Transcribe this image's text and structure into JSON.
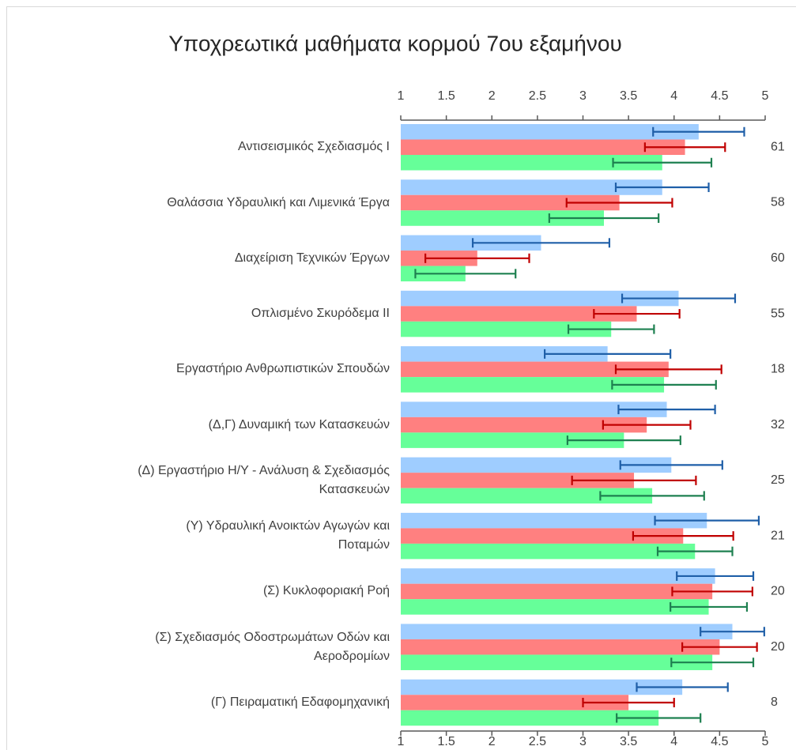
{
  "chart_data": {
    "type": "hbar_error",
    "title": "Υποχρεωτικά μαθήματα κορμού 7ου εξαμήνου",
    "categories": [
      "Αντισεισμικός Σχεδιασμός Ι",
      "Θαλάσσια Υδραυλική και Λιμενικά Έργα",
      "Διαχείριση Τεχνικών Έργων",
      "Οπλισμένο Σκυρόδεμα ΙΙ",
      "Εργαστήριο Ανθρωπιστικών Σπουδών",
      "(Δ,Γ) Δυναμική των Κατασκευών ",
      "(Δ) Εργαστήριο Η/Υ - Ανάλυση & Σχεδιασμός\nΚατασκευών",
      "(Υ) Υδραυλική Ανοικτών Αγωγών και\nΠοταμών",
      "(Σ) Κυκλοφοριακή Ροή",
      "(Σ) Σχεδιασμός Οδοστρωμάτων Οδών και\nΑεροδρομίων",
      "(Γ) Πειραματική Εδαφομηχανική"
    ],
    "series": [
      {
        "color": "#9fcdff",
        "error_color": "#1f5fa8",
        "values": [
          4.27,
          3.87,
          2.54,
          4.05,
          3.27,
          3.92,
          3.97,
          4.36,
          4.45,
          4.64,
          4.09
        ],
        "errors": [
          0.5,
          0.51,
          0.75,
          0.62,
          0.69,
          0.53,
          0.56,
          0.57,
          0.42,
          0.35,
          0.5
        ]
      },
      {
        "color": "#ff8080",
        "error_color": "#c00000",
        "values": [
          4.12,
          3.4,
          1.84,
          3.59,
          3.94,
          3.7,
          3.56,
          4.1,
          4.42,
          4.5,
          3.5
        ],
        "errors": [
          0.44,
          0.58,
          0.57,
          0.47,
          0.58,
          0.48,
          0.68,
          0.55,
          0.44,
          0.41,
          0.5
        ]
      },
      {
        "color": "#66ff99",
        "error_color": "#1e8050",
        "values": [
          3.87,
          3.23,
          1.71,
          3.31,
          3.89,
          3.45,
          3.76,
          4.23,
          4.38,
          4.42,
          3.83
        ],
        "errors": [
          0.54,
          0.6,
          0.55,
          0.47,
          0.57,
          0.62,
          0.57,
          0.41,
          0.42,
          0.45,
          0.46
        ]
      }
    ],
    "right_labels": [
      61,
      58,
      60,
      55,
      18,
      32,
      25,
      21,
      20,
      20,
      8
    ],
    "xlim": [
      1,
      5
    ],
    "xticks": [
      1,
      1.5,
      2,
      2.5,
      3,
      3.5,
      4,
      4.5,
      5
    ],
    "grid": false
  }
}
